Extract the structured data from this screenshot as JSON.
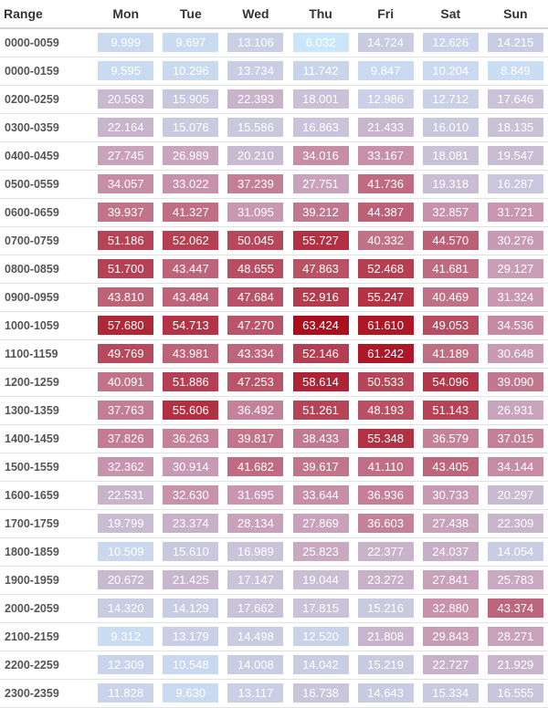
{
  "chart_data": {
    "type": "heatmap",
    "row_header": "Range",
    "columns": [
      "Mon",
      "Tue",
      "Wed",
      "Thu",
      "Fri",
      "Sat",
      "Sun"
    ],
    "rows": [
      {
        "label": "0000-0059",
        "values": [
          "9.999",
          "9.697",
          "13.106",
          "6.032",
          "14.724",
          "12.626",
          "14.215"
        ]
      },
      {
        "label": "0000-0159",
        "values": [
          "9.595",
          "10.296",
          "13.734",
          "11.742",
          "9.847",
          "10.204",
          "8.849"
        ]
      },
      {
        "label": "0200-0259",
        "values": [
          "20.563",
          "15.905",
          "22.393",
          "18.001",
          "12.986",
          "12.712",
          "17.646"
        ]
      },
      {
        "label": "0300-0359",
        "values": [
          "22.164",
          "15.076",
          "15.586",
          "16.863",
          "21.433",
          "16.010",
          "18.135"
        ]
      },
      {
        "label": "0400-0459",
        "values": [
          "27.745",
          "26.989",
          "20.210",
          "34.016",
          "33.167",
          "18.081",
          "19.547"
        ]
      },
      {
        "label": "0500-0559",
        "values": [
          "34.057",
          "33.022",
          "37.239",
          "27.751",
          "41.736",
          "19.318",
          "16.287"
        ]
      },
      {
        "label": "0600-0659",
        "values": [
          "39.937",
          "41.327",
          "31.095",
          "39.212",
          "44.387",
          "32.857",
          "31.721"
        ]
      },
      {
        "label": "0700-0759",
        "values": [
          "51.186",
          "52.062",
          "50.045",
          "55.727",
          "40.332",
          "44.570",
          "30.276"
        ]
      },
      {
        "label": "0800-0859",
        "values": [
          "51.700",
          "43.447",
          "48.655",
          "47.863",
          "52.468",
          "41.681",
          "29.127"
        ]
      },
      {
        "label": "0900-0959",
        "values": [
          "43.810",
          "43.484",
          "47.684",
          "52.916",
          "55.247",
          "40.469",
          "31.324"
        ]
      },
      {
        "label": "1000-1059",
        "values": [
          "57.680",
          "54.713",
          "47.270",
          "63.424",
          "61.610",
          "49.053",
          "34.536"
        ]
      },
      {
        "label": "1100-1159",
        "values": [
          "49.769",
          "43.981",
          "43.334",
          "52.146",
          "61.242",
          "41.189",
          "30.648"
        ]
      },
      {
        "label": "1200-1259",
        "values": [
          "40.091",
          "51.886",
          "47.253",
          "58.614",
          "50.533",
          "54.096",
          "39.090"
        ]
      },
      {
        "label": "1300-1359",
        "values": [
          "37.763",
          "55.606",
          "36.492",
          "51.261",
          "48.193",
          "51.143",
          "26.931"
        ]
      },
      {
        "label": "1400-1459",
        "values": [
          "37.826",
          "36.263",
          "39.817",
          "38.433",
          "55.348",
          "36.579",
          "37.015"
        ]
      },
      {
        "label": "1500-1559",
        "values": [
          "32.362",
          "30.914",
          "41.682",
          "39.617",
          "41.110",
          "43.405",
          "34.144"
        ]
      },
      {
        "label": "1600-1659",
        "values": [
          "22.531",
          "32.630",
          "31.695",
          "33.644",
          "36.936",
          "30.733",
          "20.297"
        ]
      },
      {
        "label": "1700-1759",
        "values": [
          "19.799",
          "23.374",
          "28.134",
          "27.869",
          "36.603",
          "27.438",
          "22.309"
        ]
      },
      {
        "label": "1800-1859",
        "values": [
          "10.509",
          "15.610",
          "16.989",
          "25.823",
          "22.377",
          "24.037",
          "14.054"
        ]
      },
      {
        "label": "1900-1959",
        "values": [
          "20.672",
          "21.425",
          "17.147",
          "19.044",
          "23.272",
          "27.841",
          "25.783"
        ]
      },
      {
        "label": "2000-2059",
        "values": [
          "14.320",
          "14.129",
          "17.662",
          "17.815",
          "15.216",
          "32.880",
          "43.374"
        ]
      },
      {
        "label": "2100-2159",
        "values": [
          "9.312",
          "13.179",
          "14.498",
          "12.520",
          "21.808",
          "29.843",
          "28.271"
        ]
      },
      {
        "label": "2200-2259",
        "values": [
          "12.309",
          "10.548",
          "14.008",
          "14.042",
          "15.219",
          "22.727",
          "21.929"
        ]
      },
      {
        "label": "2300-2359",
        "values": [
          "11.828",
          "9.630",
          "13.117",
          "16.738",
          "14.643",
          "15.334",
          "16.555"
        ]
      }
    ],
    "color_scale": {
      "min": 6.032,
      "max": 63.424,
      "low_color": "#c9e6fb",
      "high_color": "#ab0f1e"
    }
  }
}
